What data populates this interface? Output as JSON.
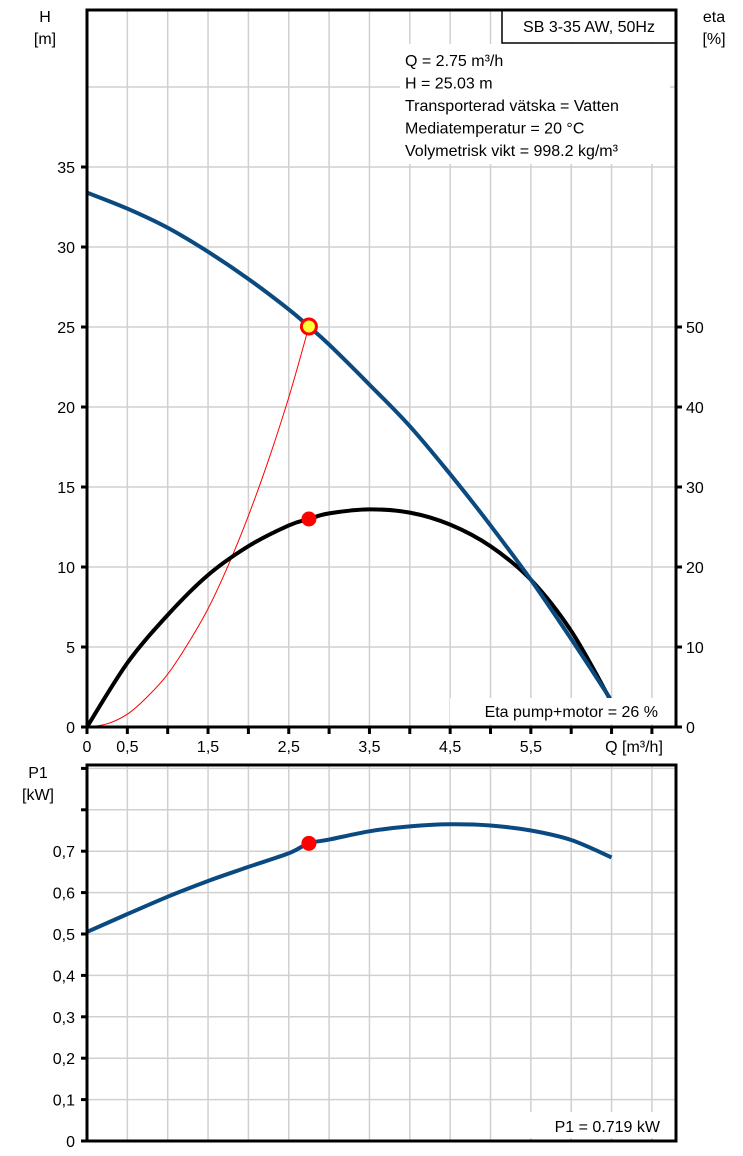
{
  "colors": {
    "head": "#0b4a80",
    "eta": "#000000",
    "system": "#ff0000",
    "power": "#0b4a80",
    "marker": "#ff0000",
    "marker_op": "#ffff33"
  },
  "chart_data": [
    {
      "type": "line",
      "title": "SB 3-35 AW, 50Hz",
      "xlabel": "Q [m³/h]",
      "ylabel_left": [
        "H",
        "[m]"
      ],
      "ylabel_right": [
        "eta",
        "[%]"
      ],
      "xlim": [
        0,
        7.3
      ],
      "ylim_left": [
        0,
        44.8
      ],
      "ylim_right": [
        0,
        89.6
      ],
      "x_ticks": [
        0,
        0.5,
        1,
        1.5,
        2,
        2.5,
        3,
        3.5,
        4,
        4.5,
        5,
        5.5,
        6,
        6.5,
        7
      ],
      "x_tick_labels": [
        {
          "v": 0,
          "t": "0"
        },
        {
          "v": 0.5,
          "t": "0,5"
        },
        {
          "v": 1.5,
          "t": "1,5"
        },
        {
          "v": 2.5,
          "t": "2,5"
        },
        {
          "v": 3.5,
          "t": "3,5"
        },
        {
          "v": 4.5,
          "t": "4,5"
        },
        {
          "v": 5.5,
          "t": "5,5"
        }
      ],
      "y_left_ticks": [
        {
          "v": 0,
          "t": "0"
        },
        {
          "v": 5,
          "t": "5"
        },
        {
          "v": 10,
          "t": "10"
        },
        {
          "v": 15,
          "t": "15"
        },
        {
          "v": 20,
          "t": "20"
        },
        {
          "v": 25,
          "t": "25"
        },
        {
          "v": 30,
          "t": "30"
        },
        {
          "v": 35,
          "t": "35"
        }
      ],
      "y_right_ticks": [
        {
          "v": 0,
          "t": "0"
        },
        {
          "v": 10,
          "t": "10"
        },
        {
          "v": 20,
          "t": "20"
        },
        {
          "v": 30,
          "t": "30"
        },
        {
          "v": 40,
          "t": "40"
        },
        {
          "v": 50,
          "t": "50"
        }
      ],
      "grid_h": [
        5,
        10,
        15,
        20,
        25,
        30,
        35,
        40
      ],
      "grid": true,
      "info": [
        "Q = 2.75 m³/h",
        "H = 25.03 m",
        "Transporterad vätska = Vatten",
        "Mediatemperatur = 20 °C",
        "Volymetrisk vikt = 998.2 kg/m³"
      ],
      "annotation": "Eta pump+motor = 26 %",
      "series": [
        {
          "name": "H",
          "axis": "left",
          "x": [
            0,
            0.5,
            1,
            1.5,
            2,
            2.5,
            2.75,
            3,
            3.5,
            4,
            4.5,
            5,
            5.5,
            6,
            6.48
          ],
          "y": [
            33.4,
            32.4,
            31.2,
            29.7,
            28.0,
            26.1,
            25.03,
            23.9,
            21.4,
            18.8,
            15.8,
            12.6,
            9.2,
            5.5,
            1.8
          ]
        },
        {
          "name": "Eta",
          "axis": "right",
          "x": [
            0,
            0.5,
            1,
            1.5,
            2,
            2.5,
            2.75,
            3,
            3.5,
            4,
            4.5,
            5,
            5.5,
            6,
            6.48
          ],
          "y": [
            0,
            8.0,
            14.0,
            19.0,
            22.6,
            25.2,
            26.0,
            26.7,
            27.2,
            26.8,
            25.3,
            22.6,
            18.4,
            12.0,
            3.5
          ]
        },
        {
          "name": "System",
          "axis": "left",
          "x": [
            0,
            0.25,
            0.5,
            0.75,
            1,
            1.25,
            1.5,
            1.75,
            2,
            2.25,
            2.5,
            2.75
          ],
          "y": [
            0,
            0.2,
            0.8,
            1.9,
            3.3,
            5.2,
            7.4,
            10.1,
            13.2,
            16.7,
            20.6,
            25.03
          ]
        }
      ],
      "points": [
        {
          "name": "operating-point-head",
          "x": 2.75,
          "y": 25.03,
          "axis": "left"
        },
        {
          "name": "operating-point-eta",
          "x": 2.75,
          "y": 26,
          "axis": "right"
        }
      ]
    },
    {
      "type": "line",
      "ylabel": [
        "P1",
        "[kW]"
      ],
      "xlim": [
        0,
        7.3
      ],
      "ylim": [
        0,
        0.908
      ],
      "y_ticks": [
        {
          "v": 0,
          "t": "0"
        },
        {
          "v": 0.1,
          "t": "0,1"
        },
        {
          "v": 0.2,
          "t": "0,2"
        },
        {
          "v": 0.3,
          "t": "0,3"
        },
        {
          "v": 0.4,
          "t": "0,4"
        },
        {
          "v": 0.5,
          "t": "0,5"
        },
        {
          "v": 0.6,
          "t": "0,6"
        },
        {
          "v": 0.7,
          "t": "0,7"
        },
        {
          "v": 0.8,
          "t": ""
        },
        {
          "v": 0.9,
          "t": ""
        }
      ],
      "annotation": "P1 = 0.719 kW",
      "series": [
        {
          "name": "P1",
          "x": [
            0,
            0.5,
            1,
            1.5,
            2,
            2.5,
            2.75,
            3,
            3.5,
            4,
            4.5,
            5,
            5.5,
            6,
            6.5
          ],
          "y": [
            0.505,
            0.548,
            0.59,
            0.628,
            0.662,
            0.695,
            0.719,
            0.728,
            0.748,
            0.76,
            0.765,
            0.762,
            0.75,
            0.727,
            0.685
          ]
        }
      ],
      "points": [
        {
          "name": "operating-point-power",
          "x": 2.75,
          "y": 0.719
        }
      ]
    }
  ]
}
